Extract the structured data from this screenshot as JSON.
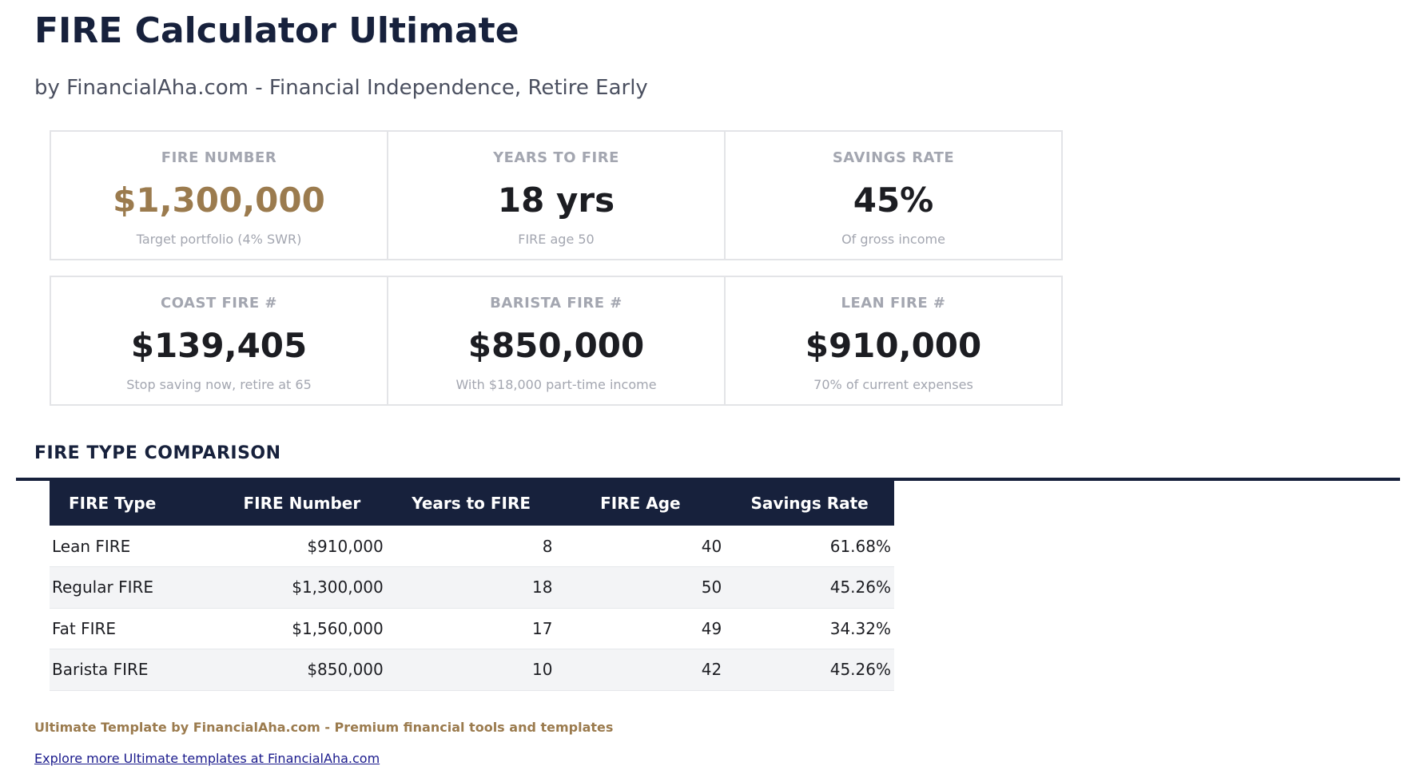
{
  "header": {
    "title": "FIRE Calculator Ultimate",
    "subtitle": "by FinancialAha.com - Financial Independence, Retire Early"
  },
  "metrics": [
    {
      "label": "FIRE NUMBER",
      "value": "$1,300,000",
      "sub": "Target portfolio (4% SWR)",
      "accent": "#9b7b4e"
    },
    {
      "label": "YEARS TO FIRE",
      "value": "18 yrs",
      "sub": "FIRE age 50"
    },
    {
      "label": "SAVINGS RATE",
      "value": "45%",
      "sub": "Of gross income"
    },
    {
      "label": "COAST FIRE #",
      "value": "$139,405",
      "sub": "Stop saving now, retire at 65"
    },
    {
      "label": "BARISTA FIRE #",
      "value": "$850,000",
      "sub": "With $18,000 part-time income"
    },
    {
      "label": "LEAN FIRE #",
      "value": "$910,000",
      "sub": "70% of current expenses"
    }
  ],
  "comparison": {
    "title": "FIRE TYPE COMPARISON",
    "columns": [
      "FIRE Type",
      "FIRE Number",
      "Years to FIRE",
      "FIRE Age",
      "Savings Rate"
    ],
    "rows": [
      [
        "Lean FIRE",
        "$910,000",
        "8",
        "40",
        "61.68%"
      ],
      [
        "Regular FIRE",
        "$1,300,000",
        "18",
        "50",
        "45.26%"
      ],
      [
        "Fat FIRE",
        "$1,560,000",
        "17",
        "49",
        "34.32%"
      ],
      [
        "Barista FIRE",
        "$850,000",
        "10",
        "42",
        "45.26%"
      ]
    ]
  },
  "footer": {
    "note": "Ultimate Template by FinancialAha.com - Premium financial tools and templates",
    "link_label": "Explore more Ultimate templates at FinancialAha.com"
  },
  "colors": {
    "navy": "#17213c",
    "gold": "#9b7b4e",
    "muted": "#a3a6b0",
    "stripe": "#f3f4f6"
  }
}
